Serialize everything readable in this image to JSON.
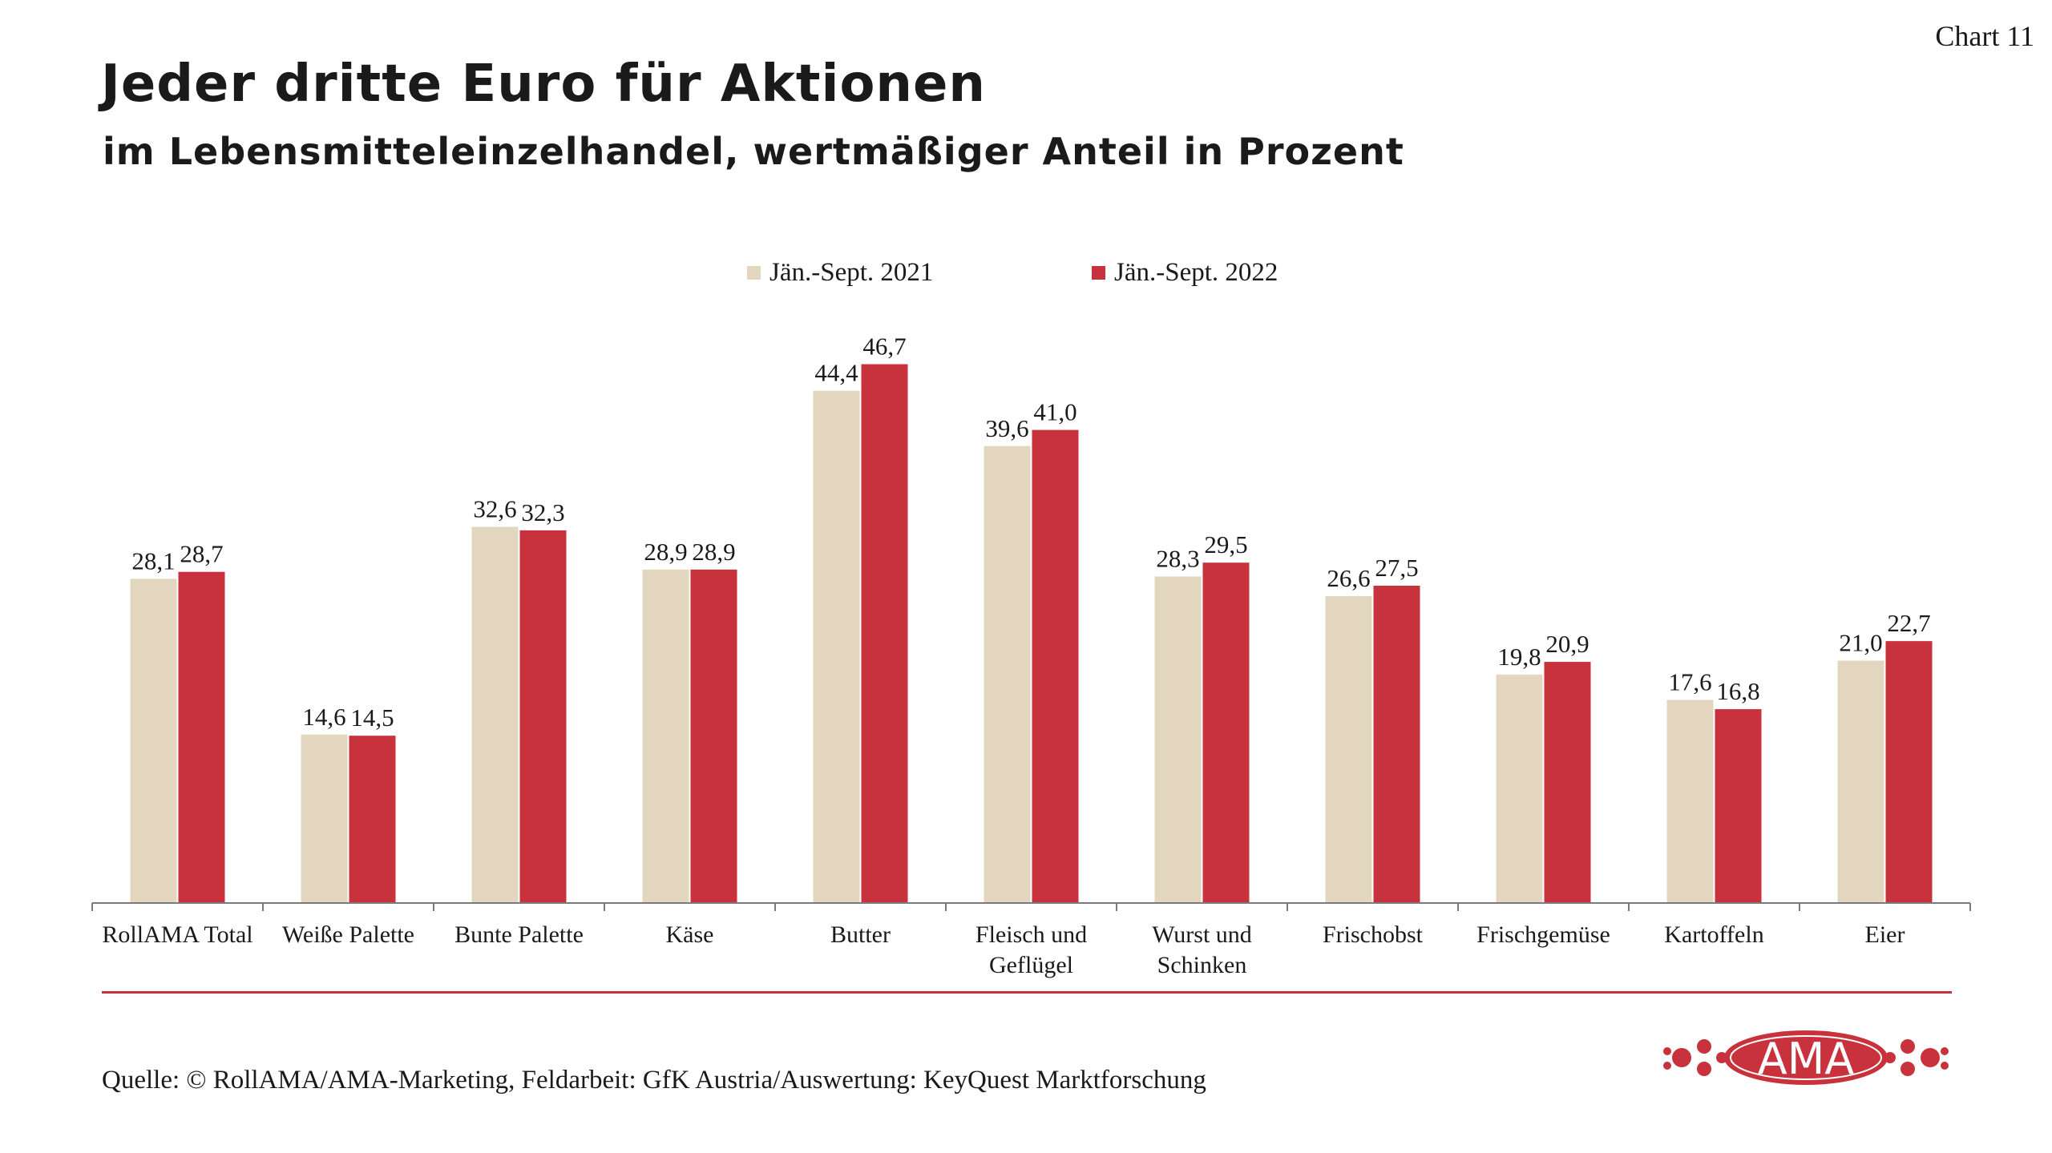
{
  "chart_number": "Chart 11",
  "title": "Jeder dritte Euro für Aktionen",
  "subtitle": "im Lebensmitteleinzelhandel, wertmäßiger Anteil in Prozent",
  "source": "Quelle: © RollAMA/AMA-Marketing, Feldarbeit: GfK Austria/Auswertung: KeyQuest Marktforschung",
  "logo_text": "AMA",
  "colors": {
    "series_2021": "#e2d6bf",
    "series_2022": "#c8323c",
    "axis": "#7a7a7a",
    "rule": "#c8323c"
  },
  "chart_data": {
    "type": "bar",
    "title": "Jeder dritte Euro für Aktionen",
    "subtitle": "im Lebensmitteleinzelhandel, wertmäßiger Anteil in Prozent",
    "xlabel": "",
    "ylabel": "",
    "ylim": [
      0,
      50
    ],
    "grid": false,
    "legend_position": "top-center",
    "categories": [
      [
        "RollAMA Total"
      ],
      [
        "Weiße Palette"
      ],
      [
        "Bunte Palette"
      ],
      [
        "Käse"
      ],
      [
        "Butter"
      ],
      [
        "Fleisch und",
        "Geflügel"
      ],
      [
        "Wurst und",
        "Schinken"
      ],
      [
        "Frischobst"
      ],
      [
        "Frischgemüse"
      ],
      [
        "Kartoffeln"
      ],
      [
        "Eier"
      ]
    ],
    "series": [
      {
        "name": "Jän.-Sept. 2021",
        "values": [
          28.1,
          14.6,
          32.6,
          28.9,
          44.4,
          39.6,
          28.3,
          26.6,
          19.8,
          17.6,
          21.0
        ],
        "labels": [
          "28,1",
          "14,6",
          "32,6",
          "28,9",
          "44,4",
          "39,6",
          "28,3",
          "26,6",
          "19,8",
          "17,6",
          "21,0"
        ]
      },
      {
        "name": "Jän.-Sept. 2022",
        "values": [
          28.7,
          14.5,
          32.3,
          28.9,
          46.7,
          41.0,
          29.5,
          27.5,
          20.9,
          16.8,
          22.7
        ],
        "labels": [
          "28,7",
          "14,5",
          "32,3",
          "28,9",
          "46,7",
          "41,0",
          "29,5",
          "27,5",
          "20,9",
          "16,8",
          "22,7"
        ]
      }
    ]
  }
}
